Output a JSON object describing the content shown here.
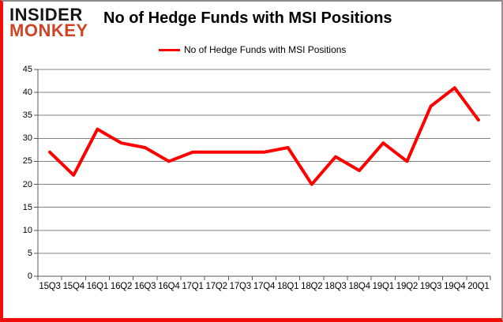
{
  "logo": {
    "line1": "INSIDER",
    "line2": "MONKEY"
  },
  "header": {
    "title": "No of Hedge Funds with MSI Positions"
  },
  "legend": {
    "label": "No of Hedge Funds with MSI Positions",
    "line_color": "#fe0000"
  },
  "colors": {
    "series_red": "#fe0000",
    "gridline": "#808080",
    "axis": "#595959",
    "text": "#000000",
    "frame_red": "#f20d0d",
    "frame_gray": "#8c8c8c",
    "logo_black": "#161414",
    "logo_red": "#cf4426"
  },
  "chart_data": {
    "type": "line",
    "title": "No of Hedge Funds with MSI Positions",
    "categories": [
      "15Q3",
      "15Q4",
      "16Q1",
      "16Q2",
      "16Q3",
      "16Q4",
      "17Q1",
      "17Q2",
      "17Q3",
      "17Q4",
      "18Q1",
      "18Q2",
      "18Q3",
      "18Q4",
      "19Q1",
      "19Q2",
      "19Q3",
      "19Q4",
      "20Q1"
    ],
    "series": [
      {
        "name": "No of Hedge Funds with MSI Positions",
        "color": "#fe0000",
        "values": [
          27,
          22,
          32,
          29,
          28,
          25,
          27,
          27,
          27,
          27,
          28,
          20,
          26,
          23,
          29,
          25,
          37,
          41,
          34
        ]
      }
    ],
    "xlabel": "",
    "ylabel": "",
    "ylim": [
      0,
      45
    ],
    "ytick_step": 5,
    "grid": true,
    "legend_position": "top-center"
  }
}
